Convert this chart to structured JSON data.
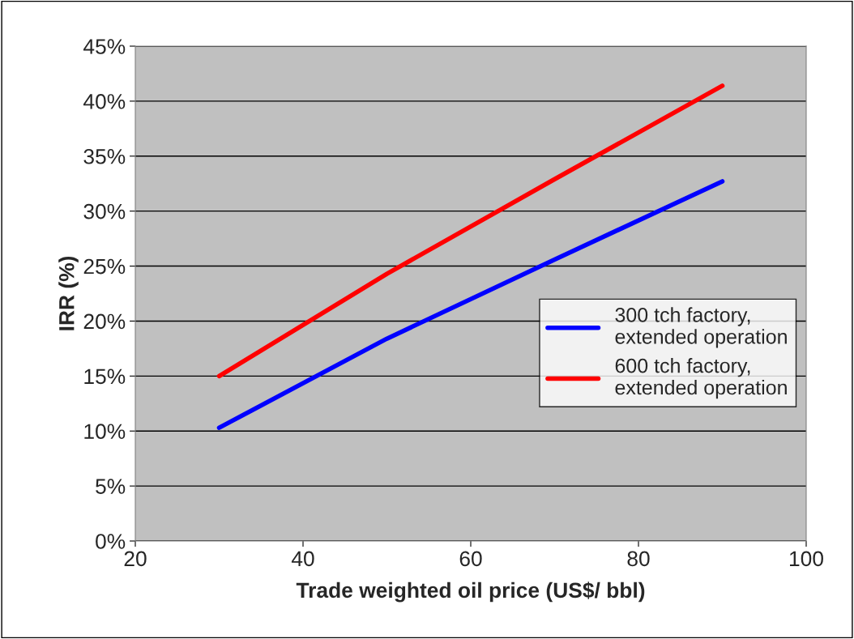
{
  "chart_data": {
    "type": "line",
    "xlabel": "Trade weighted oil price (US$/ bbl)",
    "ylabel": "IRR (%)",
    "x": [
      30,
      50,
      70,
      90
    ],
    "series": [
      {
        "name": "300 tch factory,\nextended operation",
        "color": "#0000ff",
        "values": [
          10.3,
          18.4,
          25.6,
          32.7
        ]
      },
      {
        "name": "600 tch factory,\nextended operation",
        "color": "#ff0000",
        "values": [
          15.0,
          24.3,
          32.9,
          41.4
        ]
      }
    ],
    "xlim": [
      20,
      100
    ],
    "xticks": [
      20,
      40,
      60,
      80,
      100
    ],
    "ylim": [
      0,
      45
    ],
    "yticks": [
      {
        "value": 0,
        "label": "0%"
      },
      {
        "value": 5,
        "label": "5%"
      },
      {
        "value": 10,
        "label": "10%"
      },
      {
        "value": 15,
        "label": "15%"
      },
      {
        "value": 20,
        "label": "20%"
      },
      {
        "value": 25,
        "label": "25%"
      },
      {
        "value": 30,
        "label": "30%"
      },
      {
        "value": 35,
        "label": "35%"
      },
      {
        "value": 40,
        "label": "40%"
      },
      {
        "value": 45,
        "label": "45%"
      }
    ],
    "grid": "y",
    "legend": "right",
    "marker": "none",
    "line_style": "solid"
  }
}
